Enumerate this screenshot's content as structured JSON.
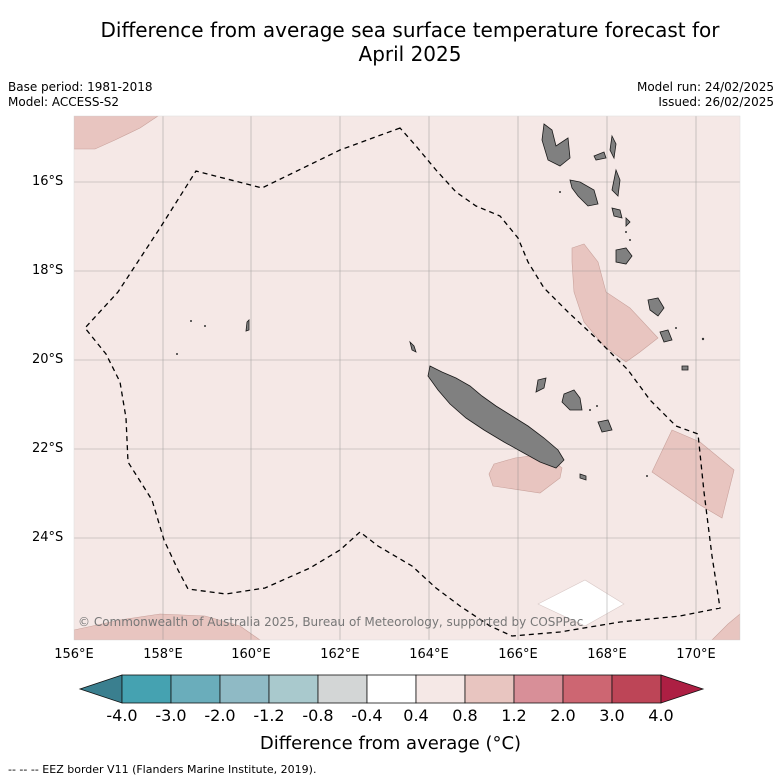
{
  "title": {
    "line1": "Difference from average sea surface temperature forecast for",
    "line2": "April 2025"
  },
  "meta": {
    "base_period": "Base period: 1981-2018",
    "model": "Model: ACCESS-S2",
    "model_run": "Model run: 24/02/2025",
    "issued": "Issued: 26/02/2025"
  },
  "map": {
    "copyright": "© Commonwealth of Australia 2025, Bureau of Meteorology, supported by COSPPac",
    "latitude_labels": [
      "16°S",
      "18°S",
      "20°S",
      "22°S",
      "24°S"
    ],
    "longitude_labels": [
      "156°E",
      "158°E",
      "160°E",
      "162°E",
      "164°E",
      "166°E",
      "168°E",
      "170°E"
    ],
    "colors": {
      "ocean_background": "#f5e8e6",
      "warm_0_8_to_1_2": "#e8c5c0",
      "neutral_band": "#ffffff",
      "land": "#808080",
      "eez_border": "#000000"
    },
    "features": [
      "New Caledonia",
      "Loyalty Islands",
      "Vanuatu",
      "EEZ border"
    ]
  },
  "colorbar": {
    "title": "Difference from average (°C)",
    "tick_labels": [
      "-4.0",
      "-3.0",
      "-2.0",
      "-1.2",
      "-0.8",
      "-0.4",
      "0.4",
      "0.8",
      "1.2",
      "2.0",
      "3.0",
      "4.0"
    ],
    "colors": [
      "#3a7f8f",
      "#45a2b1",
      "#6aadbb",
      "#8fbac5",
      "#a9c9cd",
      "#d3d6d6",
      "#ffffff",
      "#f5e8e6",
      "#e8c5c0",
      "#d88f98",
      "#cd6672",
      "#bd4557",
      "#ad1f43"
    ]
  },
  "footnote": "--  --  -- EEZ border V11 (Flanders Marine Institute, 2019)."
}
